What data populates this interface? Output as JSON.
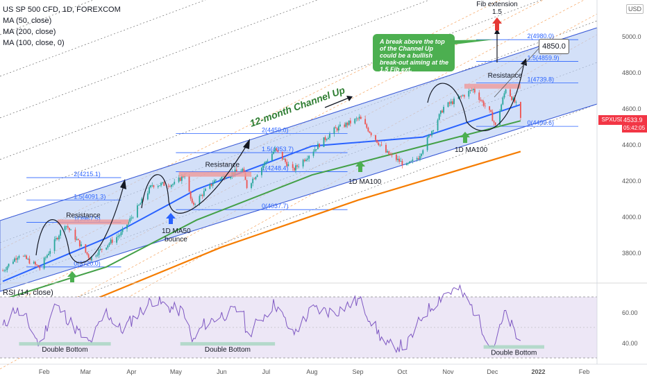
{
  "legend": {
    "symbol": "US SP 500 CFD, 1D, FOREXCOM",
    "ma50": "MA (50, close)",
    "ma200": "MA (200, close)",
    "ma100": "MA (100, close, 0)"
  },
  "currency": "USD",
  "rsi_label": "RSI (14, close)",
  "price_tag": {
    "symbol": "SPXUSD",
    "price": "4533.9",
    "countdown": "05:42:05"
  },
  "target_box": "4850.0",
  "callout": "A break above the top of the Channel Up could be a bullish break-out aiming at the 1.5 Fib ext.",
  "fib_ext_label": [
    "Fib extension",
    "1.5"
  ],
  "channel_label": "12-month Channel Up",
  "colors": {
    "candle_up": "#26a69a",
    "candle_down": "#ef5350",
    "ma50": "#2962ff",
    "ma100": "#43a047",
    "ma200": "#f57c00",
    "channel_fill": "#bbcff5",
    "fib_line": "#2962ff",
    "rsi_line": "#7e57c2",
    "rsi_fill": "#ede7f6",
    "annotation_green": "#4caf50",
    "annotation_blue": "#2962ff"
  },
  "chart_data": [
    {
      "type": "candlestick",
      "title": "US SP 500 CFD, 1D, FOREXCOM",
      "y_axis_ticks": [
        3800.0,
        4000.0,
        4200.0,
        4400.0,
        4600.0,
        4800.0,
        5000.0
      ],
      "ylim": [
        3620,
        5130
      ],
      "x_axis_ticks": [
        "Feb",
        "Mar",
        "Apr",
        "May",
        "Jun",
        "Jul",
        "Aug",
        "Sep",
        "Oct",
        "Nov",
        "Dec",
        "2022",
        "Feb"
      ],
      "price_path": [
        [
          "2021-01-04",
          3700
        ],
        [
          "2021-01-15",
          3790
        ],
        [
          "2021-01-29",
          3714
        ],
        [
          "2021-02-15",
          3960
        ],
        [
          "2021-03-04",
          3768
        ],
        [
          "2021-03-25",
          3905
        ],
        [
          "2021-04-15",
          4175
        ],
        [
          "2021-04-30",
          4180
        ],
        [
          "2021-05-07",
          4232
        ],
        [
          "2021-05-12",
          4062
        ],
        [
          "2021-05-28",
          4205
        ],
        [
          "2021-06-15",
          4260
        ],
        [
          "2021-06-18",
          4165
        ],
        [
          "2021-07-07",
          4370
        ],
        [
          "2021-07-19",
          4255
        ],
        [
          "2021-08-16",
          4480
        ],
        [
          "2021-09-02",
          4545
        ],
        [
          "2021-09-20",
          4355
        ],
        [
          "2021-10-04",
          4280
        ],
        [
          "2021-10-12",
          4330
        ],
        [
          "2021-10-29",
          4605
        ],
        [
          "2021-11-18",
          4705
        ],
        [
          "2021-11-30",
          4565
        ],
        [
          "2021-12-03",
          4500
        ],
        [
          "2021-12-10",
          4712
        ],
        [
          "2021-12-17",
          4620
        ],
        [
          "2021-12-20",
          4533.9
        ]
      ],
      "ma50_path": [
        [
          "2021-01-04",
          3640
        ],
        [
          "2021-03-15",
          3880
        ],
        [
          "2021-05-15",
          4150
        ],
        [
          "2021-08-01",
          4390
        ],
        [
          "2021-10-15",
          4440
        ],
        [
          "2021-12-20",
          4620
        ]
      ],
      "ma100_path": [
        [
          "2021-01-04",
          3540
        ],
        [
          "2021-03-15",
          3720
        ],
        [
          "2021-05-15",
          3980
        ],
        [
          "2021-08-01",
          4230
        ],
        [
          "2021-10-15",
          4390
        ],
        [
          "2021-12-20",
          4530
        ]
      ],
      "ma200_path": [
        [
          "2021-03-01",
          3520
        ],
        [
          "2021-06-01",
          3830
        ],
        [
          "2021-09-01",
          4090
        ],
        [
          "2021-12-20",
          4360
        ]
      ],
      "fib_levels": [
        {
          "label": "0(3720.0)",
          "value": 3720.0
        },
        {
          "label": "1.5(4091.3)",
          "value": 4091.3
        },
        {
          "label": "2(4215.1)",
          "value": 4215.1
        },
        {
          "label": "1(3967.5)",
          "value": 3967.5
        },
        {
          "label": "0(4037.7)",
          "value": 4037.7
        },
        {
          "label": "1(4248.4)",
          "value": 4248.4
        },
        {
          "label": "1.5(4353.7)",
          "value": 4353.7
        },
        {
          "label": "2(4459.0)",
          "value": 4459.0
        },
        {
          "label": "0(4499.6)",
          "value": 4499.6
        },
        {
          "label": "1(4739.8)",
          "value": 4739.8
        },
        {
          "label": "1.5(4859.9)",
          "value": 4859.9
        },
        {
          "label": "2(4980.0)",
          "value": 4980.0
        }
      ],
      "annotations": [
        "Resistance",
        "Resistance",
        "Resistance",
        "1D MA50 bounce",
        "1D MA100",
        "1D MA100"
      ]
    },
    {
      "type": "line",
      "title": "RSI (14, close)",
      "y_axis_ticks": [
        40.0,
        60.0
      ],
      "ylim": [
        29,
        77
      ],
      "upper_band": 70,
      "mid_band": 50,
      "lower_band": 30,
      "rsi_path": [
        [
          "2021-01-04",
          50
        ],
        [
          "2021-01-12",
          62
        ],
        [
          "2021-01-20",
          55
        ],
        [
          "2021-01-29",
          38
        ],
        [
          "2021-02-08",
          65
        ],
        [
          "2021-02-15",
          58
        ],
        [
          "2021-03-01",
          41
        ],
        [
          "2021-03-04",
          40
        ],
        [
          "2021-03-15",
          60
        ],
        [
          "2021-03-25",
          48
        ],
        [
          "2021-04-15",
          68
        ],
        [
          "2021-04-30",
          62
        ],
        [
          "2021-05-07",
          60
        ],
        [
          "2021-05-12",
          40
        ],
        [
          "2021-05-20",
          52
        ],
        [
          "2021-06-01",
          58
        ],
        [
          "2021-06-15",
          62
        ],
        [
          "2021-06-18",
          45
        ],
        [
          "2021-07-07",
          66
        ],
        [
          "2021-07-19",
          45
        ],
        [
          "2021-08-01",
          62
        ],
        [
          "2021-08-16",
          60
        ],
        [
          "2021-09-02",
          68
        ],
        [
          "2021-09-20",
          38
        ],
        [
          "2021-10-04",
          38
        ],
        [
          "2021-10-15",
          58
        ],
        [
          "2021-10-29",
          72
        ],
        [
          "2021-11-08",
          75
        ],
        [
          "2021-11-18",
          62
        ],
        [
          "2021-11-30",
          38
        ],
        [
          "2021-12-03",
          40
        ],
        [
          "2021-12-10",
          60
        ],
        [
          "2021-12-17",
          44
        ],
        [
          "2021-12-20",
          42
        ]
      ],
      "annotations": [
        "Double Bottom",
        "Double Bottom",
        "Double Bottom"
      ]
    }
  ]
}
